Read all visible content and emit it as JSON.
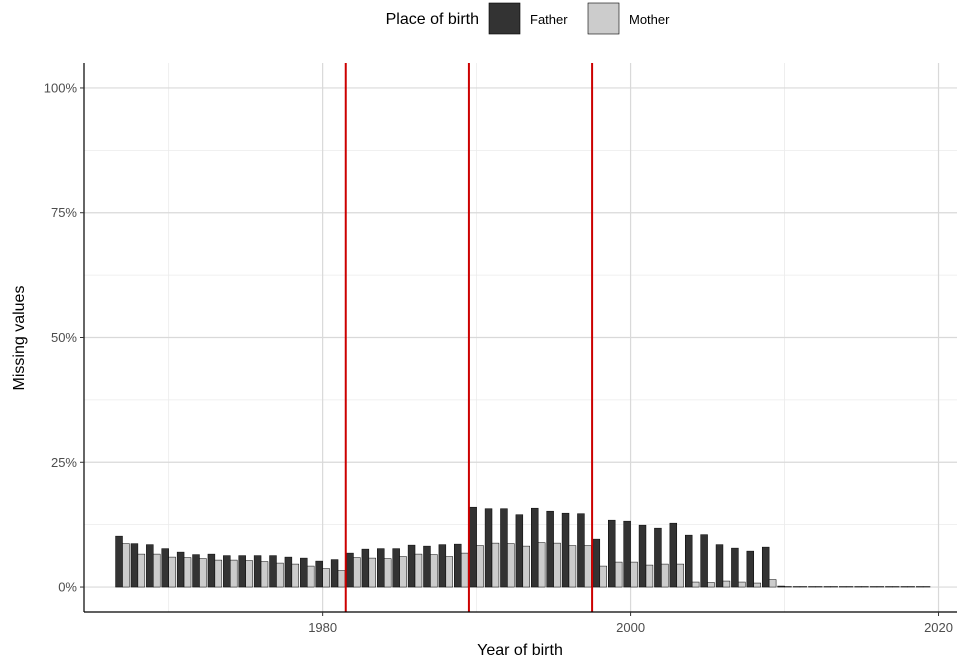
{
  "chart_data": {
    "type": "bar",
    "xlabel": "Year of birth",
    "ylabel": "Missing values",
    "xlim": [
      1964.5,
      2021.2
    ],
    "ylim": [
      -0.05,
      1.05
    ],
    "x_ticks": [
      1980,
      2000,
      2020
    ],
    "x_tick_labels": [
      "1980",
      "2000",
      "2020"
    ],
    "y_ticks": [
      0,
      0.25,
      0.5,
      0.75,
      1.0
    ],
    "y_tick_labels": [
      "0%",
      "25%",
      "50%",
      "75%",
      "100%"
    ],
    "grid": true,
    "legend": {
      "position": "top",
      "title": "Place of birth"
    },
    "vlines": [
      1981.5,
      1989.5,
      1997.5
    ],
    "vline_color": "#cc0000",
    "x": [
      1967,
      1968,
      1969,
      1970,
      1971,
      1972,
      1973,
      1974,
      1975,
      1976,
      1977,
      1978,
      1979,
      1980,
      1981,
      1982,
      1983,
      1984,
      1985,
      1986,
      1987,
      1988,
      1989,
      1990,
      1991,
      1992,
      1993,
      1994,
      1995,
      1996,
      1997,
      1998,
      1999,
      2000,
      2001,
      2002,
      2003,
      2004,
      2005,
      2006,
      2007,
      2008,
      2009,
      2010,
      2011,
      2012,
      2013,
      2014,
      2015,
      2016,
      2017,
      2018,
      2019
    ],
    "series": [
      {
        "name": "Father",
        "color": "#333333",
        "values": [
          0.102,
          0.087,
          0.085,
          0.077,
          0.07,
          0.065,
          0.066,
          0.063,
          0.063,
          0.063,
          0.063,
          0.06,
          0.058,
          0.052,
          0.055,
          0.068,
          0.076,
          0.077,
          0.077,
          0.084,
          0.082,
          0.085,
          0.086,
          0.16,
          0.157,
          0.157,
          0.145,
          0.158,
          0.152,
          0.148,
          0.147,
          0.096,
          0.134,
          0.132,
          0.124,
          0.118,
          0.128,
          0.104,
          0.105,
          0.085,
          0.078,
          0.072,
          0.08,
          0.002,
          0.001,
          0.001,
          0.001,
          0.001,
          0.001,
          0.001,
          0.001,
          0.001,
          0.001
        ]
      },
      {
        "name": "Mother",
        "color": "#cccccc",
        "values": [
          0.087,
          0.066,
          0.066,
          0.06,
          0.059,
          0.057,
          0.054,
          0.054,
          0.053,
          0.051,
          0.048,
          0.046,
          0.042,
          0.037,
          0.033,
          0.059,
          0.058,
          0.057,
          0.061,
          0.066,
          0.065,
          0.061,
          0.068,
          0.083,
          0.088,
          0.087,
          0.082,
          0.089,
          0.088,
          0.083,
          0.083,
          0.042,
          0.05,
          0.05,
          0.044,
          0.046,
          0.046,
          0.01,
          0.009,
          0.012,
          0.01,
          0.008,
          0.015,
          0.001,
          0.001,
          0.001,
          0.001,
          0.001,
          0.001,
          0.001,
          0.001,
          0.001,
          0.001
        ]
      }
    ]
  }
}
